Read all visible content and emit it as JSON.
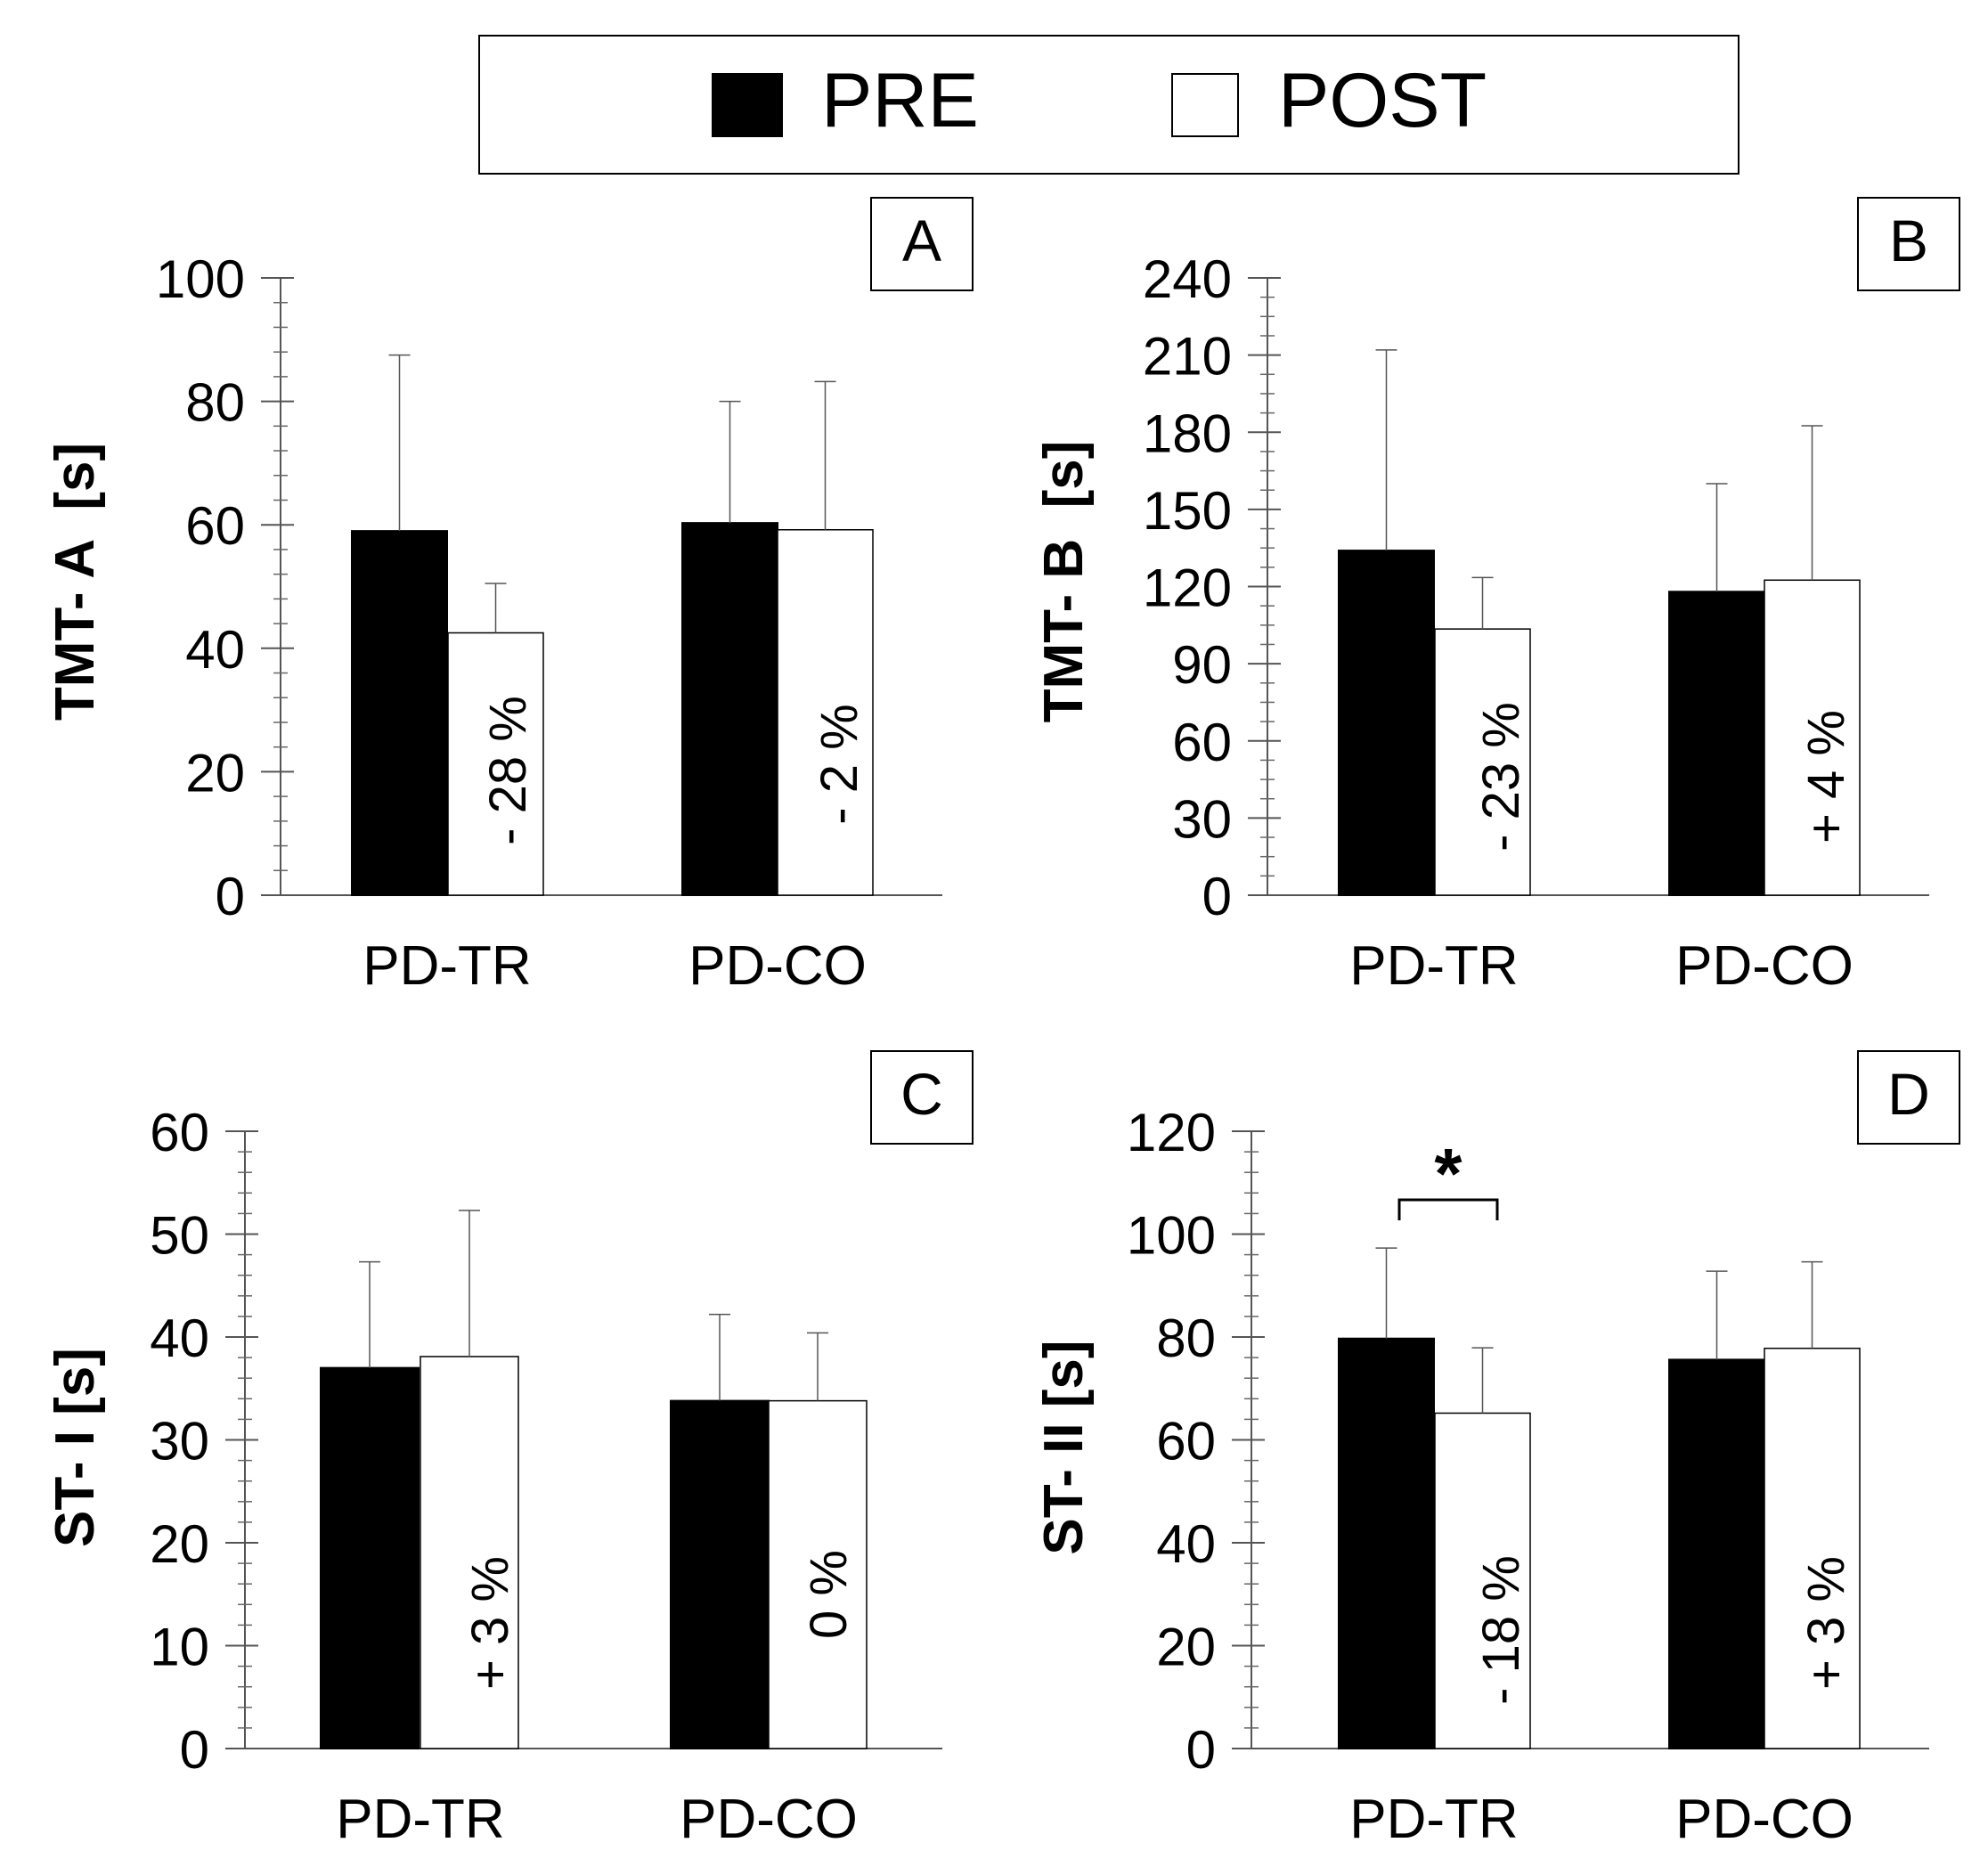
{
  "legend": {
    "items": [
      {
        "label": "PRE",
        "color": "#000000"
      },
      {
        "label": "POST",
        "color": "#ffffff"
      }
    ]
  },
  "chart_data": [
    {
      "panel": "A",
      "type": "bar",
      "ylabel": "TMT- A  [s]",
      "ylim": [
        0,
        100
      ],
      "yticks": [
        "0",
        "20",
        "40",
        "60",
        "80",
        "100"
      ],
      "ytick_values": [
        0,
        20,
        40,
        60,
        80,
        100
      ],
      "categories": [
        "PD-TR",
        "PD-CO"
      ],
      "series": [
        {
          "name": "PRE",
          "values": [
            59,
            60.3
          ],
          "errors": [
            28.5,
            19.7
          ]
        },
        {
          "name": "POST",
          "values": [
            42.5,
            59.2
          ],
          "errors": [
            8,
            24
          ]
        }
      ],
      "annotations": [
        "- 28 %",
        "- 2 %"
      ]
    },
    {
      "panel": "B",
      "type": "bar",
      "ylabel": "TMT- B  [s]",
      "ylim": [
        0,
        240
      ],
      "yticks": [
        "0",
        "30",
        "60",
        "90",
        "120",
        "150",
        "180",
        "210",
        "240"
      ],
      "ytick_values": [
        0,
        30,
        60,
        90,
        120,
        150,
        180,
        210,
        240
      ],
      "categories": [
        "PD-TR",
        "PD-CO"
      ],
      "series": [
        {
          "name": "PRE",
          "values": [
            134,
            118
          ],
          "errors": [
            78,
            42
          ]
        },
        {
          "name": "POST",
          "values": [
            103.5,
            122.5
          ],
          "errors": [
            20,
            60
          ]
        }
      ],
      "annotations": [
        "- 23 %",
        "+ 4 %"
      ]
    },
    {
      "panel": "C",
      "type": "bar",
      "ylabel": "ST- I [s]",
      "ylim": [
        0,
        60
      ],
      "yticks": [
        "0",
        "10",
        "20",
        "30",
        "40",
        "50",
        "60"
      ],
      "ytick_values": [
        0,
        10,
        20,
        30,
        40,
        50,
        60
      ],
      "categories": [
        "PD-TR",
        "PD-CO"
      ],
      "series": [
        {
          "name": "PRE",
          "values": [
            37,
            33.8
          ],
          "errors": [
            10.3,
            8.4
          ]
        },
        {
          "name": "POST",
          "values": [
            38.1,
            33.8
          ],
          "errors": [
            14.2,
            6.6
          ]
        }
      ],
      "annotations": [
        "+ 3 %",
        "0 %"
      ]
    },
    {
      "panel": "D",
      "type": "bar",
      "ylabel": "ST- II [s]",
      "ylim": [
        0,
        120
      ],
      "yticks": [
        "0",
        "20",
        "40",
        "60",
        "80",
        "100",
        "120"
      ],
      "ytick_values": [
        0,
        20,
        40,
        60,
        80,
        100,
        120
      ],
      "categories": [
        "PD-TR",
        "PD-CO"
      ],
      "series": [
        {
          "name": "PRE",
          "values": [
            79.7,
            75.6
          ],
          "errors": [
            17.6,
            17.2
          ]
        },
        {
          "name": "POST",
          "values": [
            65.2,
            77.8
          ],
          "errors": [
            12.7,
            16.8
          ]
        }
      ],
      "annotations": [
        "- 18 %",
        "+ 3 %"
      ],
      "significance": "*"
    }
  ]
}
